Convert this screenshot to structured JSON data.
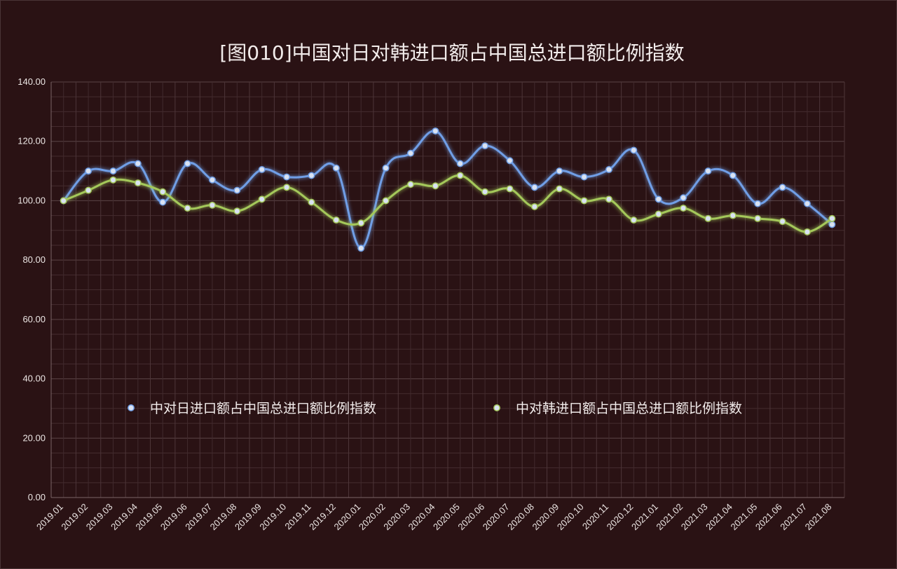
{
  "chart_data": {
    "type": "line",
    "title": "[图010]中国对日对韩进口额占中国总进口额比例指数",
    "xlabel": "",
    "ylabel": "",
    "ylim": [
      0,
      140
    ],
    "yticks": [
      "0.00",
      "20.00",
      "40.00",
      "60.00",
      "80.00",
      "100.00",
      "120.00",
      "140.00"
    ],
    "grid": true,
    "legend_position": "center-lower",
    "categories": [
      "2019.01",
      "2019.02",
      "2019.03",
      "2019.04",
      "2019.05",
      "2019.06",
      "2019.07",
      "2019.08",
      "2019.09",
      "2019.10",
      "2019.11",
      "2019.12",
      "2020.01",
      "2020.02",
      "2020.03",
      "2020.04",
      "2020.05",
      "2020.06",
      "2020.07",
      "2020.08",
      "2020.09",
      "2020.10",
      "2020.11",
      "2020.12",
      "2021.01",
      "2021.02",
      "2021.03",
      "2021.04",
      "2021.05",
      "2021.06",
      "2021.07",
      "2021.08"
    ],
    "series": [
      {
        "name": "中对日进口额占中国总进口额比例指数",
        "color": "#6f9ee6",
        "values": [
          100.0,
          110.0,
          110.0,
          112.5,
          99.5,
          112.5,
          107.0,
          103.5,
          110.5,
          108.0,
          108.5,
          111.0,
          84.0,
          111.0,
          116.0,
          123.5,
          112.5,
          118.5,
          113.5,
          104.5,
          110.0,
          108.0,
          110.5,
          117.0,
          100.5,
          101.0,
          110.0,
          108.5,
          99.0,
          104.5,
          99.0,
          92.0
        ]
      },
      {
        "name": "中对韩进口额占中国总进口额比例指数",
        "color": "#a4c85a",
        "values": [
          100.0,
          103.5,
          107.0,
          106.0,
          103.0,
          97.5,
          98.5,
          96.5,
          100.5,
          104.5,
          99.5,
          93.5,
          92.5,
          100.0,
          105.5,
          105.0,
          108.5,
          103.0,
          104.0,
          98.0,
          104.0,
          100.0,
          100.5,
          93.5,
          95.5,
          97.5,
          94.0,
          95.0,
          94.0,
          93.0,
          89.5,
          94.0
        ]
      }
    ]
  }
}
